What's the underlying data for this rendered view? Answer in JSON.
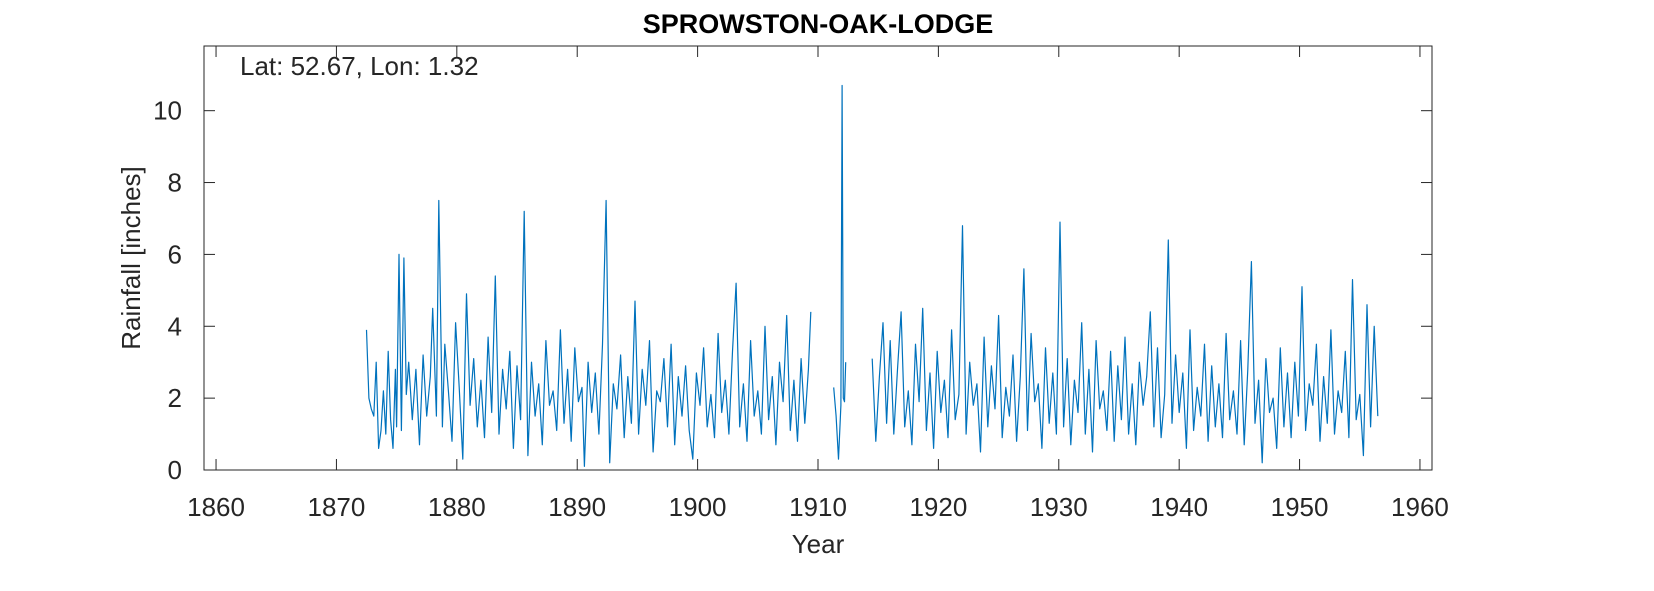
{
  "chart_data": {
    "type": "line",
    "title": "SPROWSTON-OAK-LODGE",
    "annotation": "Lat: 52.67, Lon: 1.32",
    "xlabel": "Year",
    "ylabel": "Rainfall [inches]",
    "xlim": [
      1859,
      1961
    ],
    "ylim": [
      0,
      11.8
    ],
    "xticks": [
      1860,
      1870,
      1880,
      1890,
      1900,
      1910,
      1920,
      1930,
      1940,
      1950,
      1960
    ],
    "yticks": [
      0,
      2,
      4,
      6,
      8,
      10
    ],
    "grid": false,
    "series": [
      {
        "color": "#0072BD",
        "segments": [
          {
            "x": [
              1872.5,
              1872.7,
              1872.9,
              1873.1,
              1873.3,
              1873.5,
              1873.7,
              1873.9,
              1874.1,
              1874.3,
              1874.5,
              1874.7,
              1874.9,
              1875.0,
              1875.2,
              1875.4,
              1875.6,
              1875.8,
              1876.0,
              1876.3,
              1876.6,
              1876.9,
              1877.2,
              1877.5,
              1877.8,
              1878.0,
              1878.3,
              1878.5,
              1878.8,
              1879.0,
              1879.3,
              1879.6,
              1879.9,
              1880.2,
              1880.5,
              1880.8,
              1881.1,
              1881.4,
              1881.7,
              1882.0,
              1882.3,
              1882.6,
              1882.9,
              1883.2,
              1883.5,
              1883.8,
              1884.1,
              1884.4,
              1884.7,
              1885.0,
              1885.3,
              1885.6,
              1885.9,
              1886.2,
              1886.5,
              1886.8,
              1887.1,
              1887.4,
              1887.7,
              1888.0,
              1888.3,
              1888.6,
              1888.9,
              1889.2,
              1889.5,
              1889.8,
              1890.1,
              1890.4,
              1890.6,
              1890.9,
              1891.2,
              1891.5,
              1891.8,
              1892.1,
              1892.4,
              1892.7,
              1893.0,
              1893.3,
              1893.6,
              1893.9,
              1894.2,
              1894.5,
              1894.8,
              1895.1,
              1895.4,
              1895.7,
              1896.0,
              1896.3,
              1896.6,
              1896.9,
              1897.2,
              1897.5,
              1897.8,
              1898.1,
              1898.4,
              1898.7,
              1899.0,
              1899.3,
              1899.6,
              1899.9,
              1900.2,
              1900.5,
              1900.8,
              1901.1,
              1901.4,
              1901.7,
              1902.0,
              1902.3,
              1902.6,
              1902.9,
              1903.2,
              1903.5,
              1903.8,
              1904.1,
              1904.4,
              1904.7,
              1905.0,
              1905.3,
              1905.6,
              1905.9,
              1906.2,
              1906.5,
              1906.8,
              1907.1,
              1907.4,
              1907.7,
              1908.0,
              1908.3,
              1908.6,
              1908.9,
              1909.2,
              1909.4
            ],
            "y": [
              3.9,
              2.0,
              1.7,
              1.5,
              3.0,
              0.6,
              1.1,
              2.2,
              1.0,
              3.3,
              1.4,
              0.6,
              2.8,
              1.2,
              6.0,
              1.1,
              5.9,
              2.1,
              3.0,
              1.4,
              2.8,
              0.7,
              3.2,
              1.5,
              2.6,
              4.5,
              1.5,
              7.5,
              1.2,
              3.5,
              2.2,
              0.8,
              4.1,
              2.3,
              0.3,
              4.9,
              1.8,
              3.1,
              1.2,
              2.5,
              0.9,
              3.7,
              1.6,
              5.4,
              1.0,
              2.8,
              1.7,
              3.3,
              0.6,
              2.9,
              1.4,
              7.2,
              0.4,
              3.0,
              1.5,
              2.4,
              0.7,
              3.6,
              1.8,
              2.2,
              1.1,
              3.9,
              1.3,
              2.8,
              0.8,
              3.4,
              1.9,
              2.3,
              0.1,
              3.0,
              1.6,
              2.7,
              1.0,
              3.5,
              7.5,
              0.2,
              2.4,
              1.7,
              3.2,
              0.9,
              2.6,
              1.3,
              4.7,
              1.0,
              2.8,
              1.8,
              3.6,
              0.5,
              2.2,
              1.9,
              3.1,
              1.2,
              3.5,
              0.7,
              2.6,
              1.5,
              2.9,
              1.1,
              0.3,
              2.7,
              1.8,
              3.4,
              1.2,
              2.1,
              0.9,
              3.8,
              1.6,
              2.5,
              1.0,
              3.3,
              5.2,
              1.2,
              2.4,
              0.8,
              3.6,
              1.5,
              2.2,
              1.0,
              4.0,
              1.4,
              2.6,
              0.7,
              3.0,
              1.9,
              4.3,
              1.1,
              2.5,
              0.8,
              3.1,
              1.3,
              2.8,
              4.4
            ]
          },
          {
            "x": [
              1911.3,
              1911.5,
              1911.7,
              1911.9,
              1912.0,
              1912.1,
              1912.2,
              1912.3
            ],
            "y": [
              2.3,
              1.5,
              0.3,
              1.8,
              10.7,
              2.0,
              1.9,
              3.0
            ]
          },
          {
            "x": [
              1914.5,
              1914.8,
              1915.1,
              1915.4,
              1915.7,
              1916.0,
              1916.3,
              1916.6,
              1916.9,
              1917.2,
              1917.5,
              1917.8,
              1918.1,
              1918.4,
              1918.7,
              1919.0,
              1919.3,
              1919.6,
              1919.9,
              1920.2,
              1920.5,
              1920.8,
              1921.1,
              1921.4,
              1921.7,
              1922.0,
              1922.3,
              1922.6,
              1922.9,
              1923.2,
              1923.5,
              1923.8,
              1924.1,
              1924.4,
              1924.7,
              1925.0,
              1925.3,
              1925.6,
              1925.9,
              1926.2,
              1926.5,
              1926.8,
              1927.1,
              1927.4,
              1927.7,
              1928.0,
              1928.3,
              1928.6,
              1928.9,
              1929.2,
              1929.5,
              1929.8,
              1930.1,
              1930.4,
              1930.7,
              1931.0,
              1931.3,
              1931.6,
              1931.9,
              1932.2,
              1932.5,
              1932.8,
              1933.1,
              1933.4,
              1933.7,
              1934.0,
              1934.3,
              1934.6,
              1934.9,
              1935.2,
              1935.5,
              1935.8,
              1936.1,
              1936.4,
              1936.7,
              1937.0,
              1937.3,
              1937.6,
              1937.9,
              1938.2,
              1938.5,
              1938.8,
              1939.1,
              1939.4,
              1939.7,
              1940.0,
              1940.3,
              1940.6,
              1940.9,
              1941.2,
              1941.5,
              1941.8,
              1942.1,
              1942.4,
              1942.7,
              1943.0,
              1943.3,
              1943.6,
              1943.9,
              1944.2,
              1944.5,
              1944.8,
              1945.1,
              1945.4,
              1945.7,
              1946.0,
              1946.3,
              1946.6,
              1946.9,
              1947.2,
              1947.5,
              1947.8,
              1948.1,
              1948.4,
              1948.7,
              1949.0,
              1949.3,
              1949.6,
              1949.9,
              1950.2,
              1950.5,
              1950.8,
              1951.1,
              1951.4,
              1951.7,
              1952.0,
              1952.3,
              1952.6,
              1952.9,
              1953.2,
              1953.5,
              1953.8,
              1954.1,
              1954.4,
              1954.7,
              1955.0,
              1955.3,
              1955.6,
              1955.9,
              1956.2,
              1956.5
            ],
            "y": [
              3.1,
              0.8,
              2.6,
              4.1,
              1.3,
              3.6,
              1.0,
              2.8,
              4.4,
              1.2,
              2.2,
              0.7,
              3.5,
              1.9,
              4.5,
              1.1,
              2.7,
              0.6,
              3.3,
              1.6,
              2.5,
              0.9,
              3.9,
              1.4,
              2.1,
              6.8,
              1.0,
              3.0,
              1.8,
              2.4,
              0.5,
              3.7,
              1.2,
              2.9,
              1.7,
              4.3,
              0.9,
              2.3,
              1.5,
              3.2,
              0.8,
              2.6,
              5.6,
              1.1,
              3.8,
              1.9,
              2.4,
              0.6,
              3.4,
              1.3,
              2.7,
              1.0,
              6.9,
              1.2,
              3.1,
              0.7,
              2.5,
              1.6,
              4.1,
              1.0,
              2.8,
              0.5,
              3.6,
              1.7,
              2.2,
              1.1,
              3.3,
              0.8,
              2.9,
              1.4,
              3.7,
              1.0,
              2.4,
              0.7,
              3.0,
              1.8,
              2.6,
              4.4,
              1.2,
              3.4,
              0.9,
              2.1,
              6.4,
              1.3,
              3.2,
              1.6,
              2.7,
              0.6,
              3.9,
              1.1,
              2.3,
              1.5,
              3.5,
              0.8,
              2.9,
              1.2,
              2.4,
              0.9,
              3.8,
              1.4,
              2.2,
              1.0,
              3.6,
              0.7,
              2.8,
              5.8,
              1.3,
              2.5,
              0.2,
              3.1,
              1.6,
              2.0,
              0.6,
              3.4,
              1.2,
              2.7,
              0.9,
              3.0,
              1.5,
              5.1,
              1.1,
              2.4,
              1.8,
              3.5,
              0.8,
              2.6,
              1.3,
              3.9,
              1.0,
              2.2,
              1.6,
              3.3,
              0.9,
              5.3,
              1.4,
              2.1,
              0.4,
              4.6,
              1.2,
              4.0,
              1.5
            ]
          }
        ]
      }
    ]
  }
}
